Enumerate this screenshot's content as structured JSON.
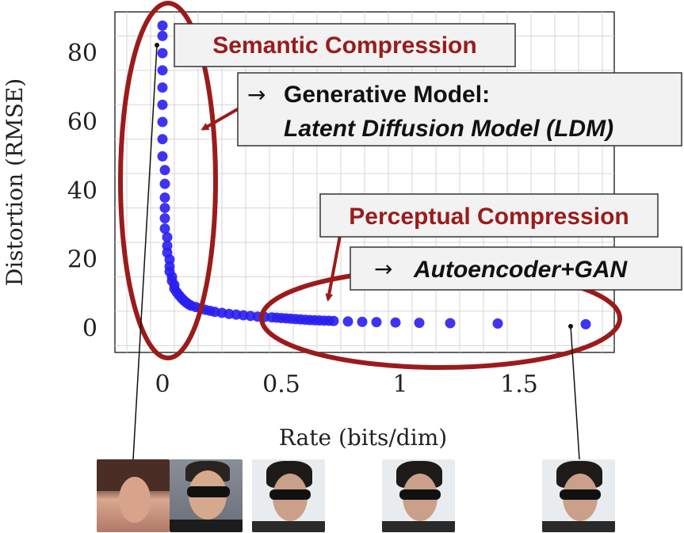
{
  "chart_data": {
    "type": "scatter",
    "title": "",
    "xlabel": "Rate (bits/dim)",
    "ylabel": "Distortion (RMSE)",
    "xlim": [
      -0.2,
      1.9
    ],
    "ylim": [
      -7,
      92
    ],
    "xticks": [
      "0",
      "0.5",
      "1",
      "1.5"
    ],
    "xtick_values": [
      0,
      0.5,
      1,
      1.5
    ],
    "yticks": [
      "0",
      "20",
      "40",
      "60",
      "80"
    ],
    "ytick_values": [
      0,
      20,
      40,
      60,
      80
    ],
    "grid": true,
    "marker_color": "#2a1ef0",
    "series": [
      {
        "x": [
          0.0,
          0.0,
          0.0,
          0.0,
          0.0,
          0.0,
          0.0,
          0.0,
          0.0,
          0.01,
          0.01,
          0.01,
          0.01,
          0.01,
          0.01,
          0.02,
          0.02,
          0.02,
          0.03,
          0.03,
          0.03,
          0.04,
          0.04,
          0.05,
          0.05,
          0.06,
          0.07,
          0.08,
          0.09,
          0.1,
          0.11,
          0.12,
          0.14,
          0.16,
          0.18,
          0.2,
          0.22,
          0.25,
          0.28,
          0.31,
          0.34,
          0.37,
          0.4,
          0.43,
          0.46,
          0.48,
          0.5,
          0.52,
          0.54,
          0.56,
          0.58,
          0.6,
          0.62,
          0.64,
          0.66,
          0.68,
          0.7,
          0.72,
          0.78,
          0.84,
          0.9,
          0.98,
          1.08,
          1.21,
          1.41,
          1.78
        ],
        "y": [
          88,
          85,
          80,
          75,
          70,
          65,
          60,
          55,
          50,
          46,
          42,
          38,
          35,
          32,
          29,
          26.5,
          24,
          22,
          20,
          18,
          16.5,
          15,
          13.8,
          12.6,
          11.5,
          10.5,
          9.6,
          8.8,
          8.1,
          7.5,
          7.0,
          6.6,
          6.2,
          5.8,
          5.4,
          5.1,
          4.8,
          4.5,
          4.2,
          4.0,
          3.8,
          3.6,
          3.4,
          3.3,
          3.2,
          3.1,
          3.0,
          2.9,
          2.8,
          2.7,
          2.6,
          2.5,
          2.4,
          2.35,
          2.3,
          2.25,
          2.2,
          2.15,
          2.0,
          1.9,
          1.8,
          1.7,
          1.6,
          1.5,
          1.4,
          1.2
        ]
      }
    ]
  },
  "annotations": {
    "semantic_label": "Semantic Compression",
    "generative_arrow": "→",
    "generative_line1": "Generative Model:",
    "generative_line2": "Latent Diffusion Model (LDM)",
    "perceptual_label": "Perceptual Compression",
    "autoencoder_arrow": "→",
    "autoencoder_label": "Autoencoder+GAN",
    "accent_color": "#9b1b1b",
    "box_fill": "#f2f2f2"
  },
  "thumbnails": [
    {
      "name": "face-thumbnail-1"
    },
    {
      "name": "face-thumbnail-2"
    },
    {
      "name": "face-thumbnail-3"
    },
    {
      "name": "face-thumbnail-4"
    },
    {
      "name": "face-thumbnail-5"
    }
  ]
}
